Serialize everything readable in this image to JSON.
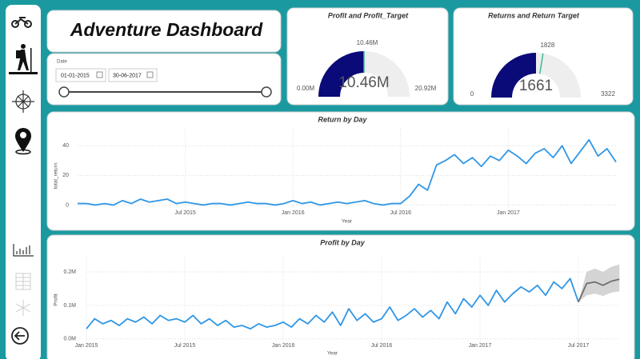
{
  "header": {
    "title": "Adventure Dashboard"
  },
  "date_filter": {
    "label": "Date",
    "start": "01-01-2015",
    "end": "30-06-2017"
  },
  "chart_data": [
    {
      "type": "gauge",
      "title": "Profit and Profit_Target",
      "color": "#0a0a78",
      "track_color": "#eeeeee",
      "target_color": "#3cb99a",
      "min": 0,
      "min_label": "0.00M",
      "max": 20920000,
      "max_label": "20.92M",
      "value": 10460000,
      "value_label": "10.46M",
      "target": 10460000,
      "target_label": "10.46M"
    },
    {
      "type": "gauge",
      "title": "Returns and Return Target",
      "color": "#0a0a78",
      "track_color": "#eeeeee",
      "target_color": "#3cb99a",
      "min": 0,
      "max": 3322,
      "value": 1661,
      "target": 1828
    },
    {
      "type": "line",
      "title": "Return by Day",
      "x_label": "Year",
      "y_label": "total_return",
      "categories": [
        null,
        null,
        null,
        null,
        null,
        null,
        null,
        null,
        null,
        null,
        null,
        null,
        "Jul 2015",
        null,
        null,
        null,
        null,
        null,
        null,
        null,
        null,
        null,
        null,
        null,
        "Jan 2016",
        null,
        null,
        null,
        null,
        null,
        null,
        null,
        null,
        null,
        null,
        null,
        "Jul 2016",
        null,
        null,
        null,
        null,
        null,
        null,
        null,
        null,
        null,
        null,
        null,
        "Jan 2017",
        null,
        null,
        null,
        null,
        null,
        null,
        null,
        null,
        null,
        null,
        null,
        null
      ],
      "series": [
        {
          "color": "#2f96e6",
          "values": [
            1,
            1,
            0,
            1,
            0,
            3,
            1,
            4,
            2,
            3,
            4,
            1,
            2,
            1,
            0,
            1,
            1,
            0,
            1,
            2,
            1,
            1,
            0,
            1,
            3,
            1,
            2,
            0,
            1,
            2,
            1,
            2,
            3,
            1,
            0,
            1,
            1,
            6,
            14,
            10,
            27,
            30,
            34,
            28,
            32,
            26,
            33,
            30,
            37,
            33,
            28,
            35,
            38,
            32,
            40,
            28,
            36,
            44,
            33,
            38,
            29
          ]
        }
      ],
      "ylim": [
        -3,
        52
      ],
      "yticks": [
        0,
        20,
        40
      ],
      "grid": true
    },
    {
      "type": "line",
      "title": "Profit by Day",
      "x_label": "Year",
      "y_label": "Profit",
      "categories": [
        "Jan 2015",
        null,
        null,
        null,
        null,
        null,
        null,
        null,
        null,
        null,
        null,
        null,
        "Jul 2015",
        null,
        null,
        null,
        null,
        null,
        null,
        null,
        null,
        null,
        null,
        null,
        "Jan 2016",
        null,
        null,
        null,
        null,
        null,
        null,
        null,
        null,
        null,
        null,
        null,
        "Jul 2016",
        null,
        null,
        null,
        null,
        null,
        null,
        null,
        null,
        null,
        null,
        null,
        "Jan 2017",
        null,
        null,
        null,
        null,
        null,
        null,
        null,
        null,
        null,
        null,
        null,
        "Jul 2017",
        null,
        null,
        null,
        null,
        null
      ],
      "series": [
        {
          "color": "#2f96e6",
          "values": [
            30000,
            60000,
            45000,
            55000,
            40000,
            60000,
            50000,
            65000,
            45000,
            70000,
            55000,
            60000,
            50000,
            70000,
            45000,
            60000,
            40000,
            55000,
            35000,
            40000,
            30000,
            45000,
            35000,
            40000,
            50000,
            35000,
            60000,
            45000,
            70000,
            50000,
            80000,
            40000,
            90000,
            55000,
            75000,
            50000,
            60000,
            95000,
            55000,
            70000,
            90000,
            65000,
            85000,
            60000,
            110000,
            75000,
            120000,
            95000,
            130000,
            100000,
            145000,
            110000,
            135000,
            155000,
            140000,
            160000,
            130000,
            170000,
            150000,
            180000,
            110000,
            null,
            null,
            null,
            null,
            null
          ]
        },
        {
          "color": "#6e6e6e",
          "values": [
            null,
            null,
            null,
            null,
            null,
            null,
            null,
            null,
            null,
            null,
            null,
            null,
            null,
            null,
            null,
            null,
            null,
            null,
            null,
            null,
            null,
            null,
            null,
            null,
            null,
            null,
            null,
            null,
            null,
            null,
            null,
            null,
            null,
            null,
            null,
            null,
            null,
            null,
            null,
            null,
            null,
            null,
            null,
            null,
            null,
            null,
            null,
            null,
            null,
            null,
            null,
            null,
            null,
            null,
            null,
            null,
            null,
            null,
            null,
            null,
            110000,
            165000,
            170000,
            160000,
            172000,
            178000
          ]
        }
      ],
      "band": {
        "color": "#d4d4d4",
        "lower": [
          null,
          null,
          null,
          null,
          null,
          null,
          null,
          null,
          null,
          null,
          null,
          null,
          null,
          null,
          null,
          null,
          null,
          null,
          null,
          null,
          null,
          null,
          null,
          null,
          null,
          null,
          null,
          null,
          null,
          null,
          null,
          null,
          null,
          null,
          null,
          null,
          null,
          null,
          null,
          null,
          null,
          null,
          null,
          null,
          null,
          null,
          null,
          null,
          null,
          null,
          null,
          null,
          null,
          null,
          null,
          null,
          null,
          null,
          null,
          null,
          110000,
          130000,
          135000,
          128000,
          138000,
          142000
        ],
        "upper": [
          null,
          null,
          null,
          null,
          null,
          null,
          null,
          null,
          null,
          null,
          null,
          null,
          null,
          null,
          null,
          null,
          null,
          null,
          null,
          null,
          null,
          null,
          null,
          null,
          null,
          null,
          null,
          null,
          null,
          null,
          null,
          null,
          null,
          null,
          null,
          null,
          null,
          null,
          null,
          null,
          null,
          null,
          null,
          null,
          null,
          null,
          null,
          null,
          null,
          null,
          null,
          null,
          null,
          null,
          null,
          null,
          null,
          null,
          null,
          null,
          110000,
          200000,
          210000,
          200000,
          215000,
          222000
        ]
      },
      "ylim": [
        -10000,
        243000
      ],
      "yticks": [
        {
          "value": 0,
          "label": "0.0M"
        },
        {
          "value": 100000,
          "label": "0.1M"
        },
        {
          "value": 200000,
          "label": "0.2M"
        }
      ],
      "grid": true
    }
  ]
}
